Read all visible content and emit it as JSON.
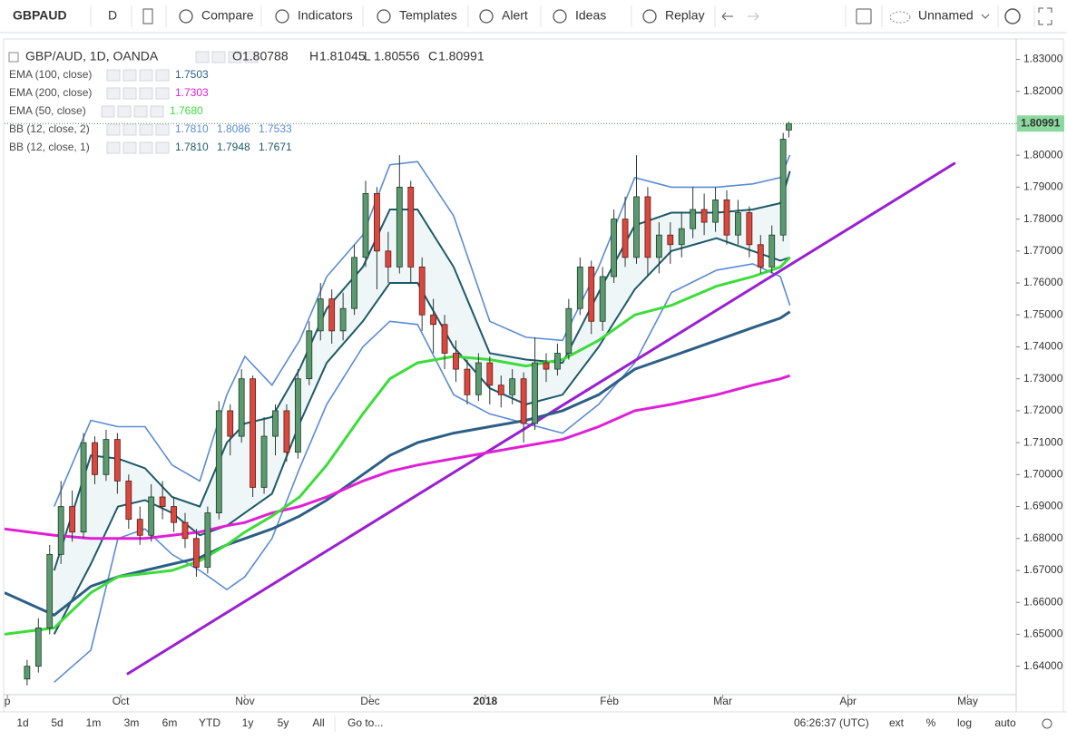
{
  "toolbar": {
    "symbol": "GBPAUD",
    "interval": "D",
    "items": [
      "Compare",
      "Indicators",
      "Templates",
      "Alert",
      "Ideas",
      "Replay"
    ],
    "layout": "Unnamed"
  },
  "bottom_bar": {
    "ranges": [
      "1d",
      "5d",
      "1m",
      "3m",
      "6m",
      "YTD",
      "1y",
      "5y",
      "All"
    ],
    "goto": "Go to...",
    "time": "06:26:37 (UTC)",
    "options": [
      "ext",
      "%",
      "log",
      "auto"
    ]
  },
  "chart_data": {
    "type": "candlestick",
    "title": "GBP/AUD, 1D, OANDA",
    "ohlc_legend": [
      {
        "key": "O",
        "value": "1.80788"
      },
      {
        "key": "H",
        "value": "1.81045"
      },
      {
        "key": "L",
        "value": "1.80556"
      },
      {
        "key": "C",
        "value": "1.80991"
      }
    ],
    "up_color": "#5b9a6e",
    "down_color": "#d9483f",
    "x": [
      4,
      6,
      8,
      10,
      12,
      14,
      16,
      18,
      20,
      22,
      24,
      26,
      28,
      30,
      32,
      34,
      36,
      38,
      40,
      42,
      44,
      46,
      48,
      50,
      52,
      54,
      56,
      58,
      60,
      62,
      64,
      66,
      68,
      70,
      72,
      74,
      76,
      78,
      80,
      82,
      84,
      86,
      88,
      90,
      92,
      94,
      96,
      98,
      100,
      102,
      104,
      106,
      108,
      110,
      112,
      114,
      116,
      118,
      120,
      122,
      124,
      126,
      128,
      130,
      132,
      134,
      136,
      138,
      139
    ],
    "open": [
      1.636,
      1.64,
      1.652,
      1.675,
      1.69,
      1.682,
      1.71,
      1.7,
      1.711,
      1.698,
      1.686,
      1.681,
      1.693,
      1.69,
      1.685,
      1.68,
      1.671,
      1.688,
      1.72,
      1.712,
      1.73,
      1.696,
      1.712,
      1.72,
      1.707,
      1.73,
      1.745,
      1.755,
      1.745,
      1.752,
      1.768,
      1.788,
      1.77,
      1.765,
      1.79,
      1.765,
      1.75,
      1.747,
      1.738,
      1.733,
      1.725,
      1.735,
      1.728,
      1.725,
      1.73,
      1.716,
      1.735,
      1.733,
      1.738,
      1.752,
      1.765,
      1.748,
      1.762,
      1.78,
      1.768,
      1.787,
      1.768,
      1.775,
      1.772,
      1.777,
      1.783,
      1.779,
      1.786,
      1.775,
      1.782,
      1.772,
      1.765,
      1.775,
      1.80788
    ],
    "high": [
      1.642,
      1.655,
      1.678,
      1.698,
      1.695,
      1.713,
      1.712,
      1.714,
      1.713,
      1.7,
      1.69,
      1.697,
      1.698,
      1.693,
      1.688,
      1.683,
      1.69,
      1.723,
      1.722,
      1.733,
      1.731,
      1.718,
      1.722,
      1.722,
      1.733,
      1.748,
      1.76,
      1.758,
      1.757,
      1.772,
      1.792,
      1.79,
      1.776,
      1.8,
      1.792,
      1.768,
      1.755,
      1.75,
      1.742,
      1.736,
      1.738,
      1.737,
      1.731,
      1.733,
      1.732,
      1.743,
      1.738,
      1.741,
      1.755,
      1.768,
      1.767,
      1.765,
      1.783,
      1.787,
      1.8,
      1.79,
      1.779,
      1.779,
      1.782,
      1.79,
      1.788,
      1.79,
      1.789,
      1.786,
      1.784,
      1.775,
      1.778,
      1.807,
      1.81045
    ],
    "low": [
      1.634,
      1.638,
      1.65,
      1.672,
      1.679,
      1.68,
      1.697,
      1.698,
      1.694,
      1.683,
      1.678,
      1.679,
      1.686,
      1.682,
      1.677,
      1.668,
      1.669,
      1.686,
      1.706,
      1.71,
      1.693,
      1.694,
      1.706,
      1.704,
      1.705,
      1.728,
      1.742,
      1.741,
      1.742,
      1.75,
      1.765,
      1.758,
      1.76,
      1.763,
      1.76,
      1.745,
      1.738,
      1.733,
      1.729,
      1.722,
      1.723,
      1.722,
      1.721,
      1.722,
      1.71,
      1.714,
      1.729,
      1.731,
      1.736,
      1.75,
      1.744,
      1.745,
      1.76,
      1.765,
      1.766,
      1.762,
      1.763,
      1.766,
      1.768,
      1.774,
      1.775,
      1.776,
      1.772,
      1.772,
      1.768,
      1.763,
      1.763,
      1.773,
      1.80556
    ],
    "close": [
      1.64,
      1.652,
      1.675,
      1.69,
      1.682,
      1.71,
      1.7,
      1.711,
      1.698,
      1.686,
      1.681,
      1.693,
      1.69,
      1.685,
      1.68,
      1.671,
      1.688,
      1.72,
      1.712,
      1.73,
      1.696,
      1.712,
      1.72,
      1.707,
      1.73,
      1.745,
      1.755,
      1.745,
      1.752,
      1.768,
      1.788,
      1.77,
      1.765,
      1.79,
      1.765,
      1.75,
      1.747,
      1.738,
      1.733,
      1.725,
      1.735,
      1.728,
      1.725,
      1.73,
      1.716,
      1.735,
      1.733,
      1.738,
      1.752,
      1.765,
      1.748,
      1.762,
      1.78,
      1.768,
      1.787,
      1.768,
      1.775,
      1.772,
      1.777,
      1.783,
      1.779,
      1.786,
      1.775,
      1.782,
      1.772,
      1.765,
      1.775,
      1.805,
      1.80991
    ],
    "overlays": {
      "x": [
        0,
        8.8,
        15.3,
        20.1,
        24.9,
        29.7,
        34.6,
        39.4,
        42.6,
        47.4,
        52.3,
        57.1,
        63.5,
        68.3,
        73.2,
        79.6,
        86,
        92.4,
        98.9,
        105.3,
        111.7,
        118.2,
        126.2,
        132.6,
        137.5,
        139.2
      ],
      "lines": [
        {
          "name": "EMA (100, close)",
          "label": "1.7503",
          "color": "#2d5f86",
          "values": [
            1.663,
            1.656,
            1.665,
            1.668,
            1.67,
            1.672,
            1.674,
            1.678,
            1.68,
            1.683,
            1.687,
            1.692,
            1.7,
            1.706,
            1.71,
            1.713,
            1.715,
            1.717,
            1.72,
            1.725,
            1.733,
            1.737,
            1.742,
            1.746,
            1.749,
            1.751
          ]
        },
        {
          "name": "EMA (200, close)",
          "label": "1.7303",
          "color": "#e01fd6",
          "values": [
            1.683,
            1.681,
            1.68,
            1.68,
            1.68,
            1.681,
            1.682,
            1.684,
            1.685,
            1.688,
            1.69,
            1.693,
            1.698,
            1.701,
            1.703,
            1.705,
            1.707,
            1.709,
            1.711,
            1.715,
            1.72,
            1.722,
            1.725,
            1.728,
            1.73,
            1.731
          ]
        },
        {
          "name": "EMA (50, close)",
          "label": "1.7680",
          "color": "#3ddc3a",
          "values": [
            1.65,
            1.652,
            1.663,
            1.668,
            1.669,
            1.67,
            1.673,
            1.678,
            1.682,
            1.687,
            1.693,
            1.703,
            1.719,
            1.73,
            1.735,
            1.737,
            1.736,
            1.734,
            1.736,
            1.742,
            1.75,
            1.753,
            1.759,
            1.762,
            1.765,
            1.768
          ]
        }
      ],
      "bands": [
        {
          "name": "BB (12, close, 2)",
          "labels": [
            "1.7810",
            "1.8086",
            "1.7533"
          ],
          "color": "#5a8bd4",
          "upper": [
            null,
            1.69,
            1.717,
            1.715,
            1.715,
            1.703,
            1.698,
            1.725,
            1.737,
            1.728,
            1.742,
            1.762,
            1.775,
            1.797,
            1.798,
            1.781,
            1.748,
            1.743,
            1.742,
            1.765,
            1.793,
            1.79,
            1.79,
            1.791,
            1.793,
            1.8
          ],
          "lower": [
            null,
            1.635,
            1.645,
            1.68,
            1.683,
            1.675,
            1.67,
            1.664,
            1.668,
            1.68,
            1.702,
            1.722,
            1.74,
            1.748,
            1.747,
            1.725,
            1.719,
            1.716,
            1.713,
            1.722,
            1.735,
            1.757,
            1.764,
            1.766,
            1.762,
            1.753
          ]
        },
        {
          "name": "BB (12, close, 1)",
          "labels": [
            "1.7810",
            "1.7948",
            "1.7671"
          ],
          "color": "#1d5a68",
          "upper": [
            null,
            1.67,
            1.706,
            1.705,
            1.702,
            1.693,
            1.69,
            1.71,
            1.716,
            1.718,
            1.733,
            1.752,
            1.765,
            1.783,
            1.783,
            1.765,
            1.738,
            1.736,
            1.735,
            1.757,
            1.778,
            1.782,
            1.782,
            1.783,
            1.785,
            1.795
          ],
          "lower": [
            null,
            1.65,
            1.672,
            1.69,
            1.692,
            1.688,
            1.681,
            1.684,
            1.688,
            1.694,
            1.716,
            1.735,
            1.748,
            1.76,
            1.76,
            1.74,
            1.727,
            1.722,
            1.725,
            1.74,
            1.758,
            1.77,
            1.774,
            1.77,
            1.767,
            1.768
          ]
        }
      ]
    },
    "trend_line": {
      "color": "#9a1fd2",
      "x": [
        21.7,
        168.5
      ],
      "values": [
        1.6375,
        1.7976
      ]
    },
    "xlim": [
      0,
      179.3
    ],
    "ylim": [
      1.6311,
      1.8361
    ],
    "xticks": [
      {
        "value": 0.5,
        "label": "p"
      },
      {
        "value": 20.6,
        "label": "Oct"
      },
      {
        "value": 42.6,
        "label": "Nov"
      },
      {
        "value": 64.8,
        "label": "Dec"
      },
      {
        "value": 85.2,
        "label": "2018"
      },
      {
        "value": 107.2,
        "label": "Feb"
      },
      {
        "value": 127.3,
        "label": "Mar"
      },
      {
        "value": 149.5,
        "label": "Apr"
      },
      {
        "value": 170.7,
        "label": "May"
      }
    ],
    "yticks": [
      {
        "value": 1.64,
        "label": "1.64000"
      },
      {
        "value": 1.65,
        "label": "1.65000"
      },
      {
        "value": 1.66,
        "label": "1.66000"
      },
      {
        "value": 1.67,
        "label": "1.67000"
      },
      {
        "value": 1.68,
        "label": "1.68000"
      },
      {
        "value": 1.69,
        "label": "1.69000"
      },
      {
        "value": 1.7,
        "label": "1.70000"
      },
      {
        "value": 1.71,
        "label": "1.71000"
      },
      {
        "value": 1.72,
        "label": "1.72000"
      },
      {
        "value": 1.73,
        "label": "1.73000"
      },
      {
        "value": 1.74,
        "label": "1.74000"
      },
      {
        "value": 1.75,
        "label": "1.75000"
      },
      {
        "value": 1.76,
        "label": "1.76000"
      },
      {
        "value": 1.77,
        "label": "1.77000"
      },
      {
        "value": 1.78,
        "label": "1.78000"
      },
      {
        "value": 1.79,
        "label": "1.79000"
      },
      {
        "value": 1.8,
        "label": "1.80000"
      },
      {
        "value": 1.81,
        "label": "1.81000"
      },
      {
        "value": 1.82,
        "label": "1.82000"
      },
      {
        "value": 1.83,
        "label": "1.83000"
      }
    ],
    "grid": false
  }
}
